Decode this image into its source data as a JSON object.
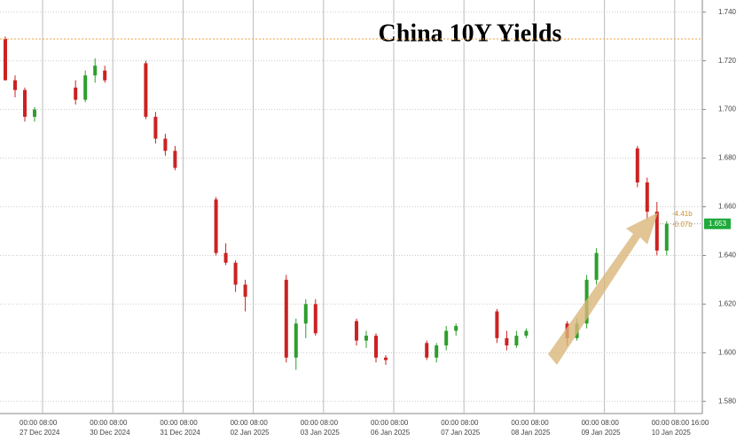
{
  "chart_data": {
    "type": "candlestick",
    "title": "China 10Y Yields",
    "ylim": [
      1.575,
      1.745
    ],
    "yticks": [
      {
        "value": 1.58,
        "label": "1.580"
      },
      {
        "value": 1.6,
        "label": "1.600"
      },
      {
        "value": 1.62,
        "label": "1.620"
      },
      {
        "value": 1.64,
        "label": "1.640"
      },
      {
        "value": 1.66,
        "label": "1.660"
      },
      {
        "value": 1.68,
        "label": "1.680"
      },
      {
        "value": 1.7,
        "label": "1.700"
      },
      {
        "value": 1.72,
        "label": "1.720"
      },
      {
        "value": 1.74,
        "label": "1.740"
      }
    ],
    "up_color": "#2e9e2e",
    "down_color": "#cc2222",
    "grid": true,
    "reference_line": 1.729,
    "last_price": 1.653,
    "annotations": [
      "-4.41b",
      "-0.07b"
    ],
    "days": [
      {
        "times": "00:00 08:00",
        "date": "27 Dec 2024",
        "open": [
          1.729,
          1.712,
          1.708,
          1.697
        ],
        "high": [
          1.73,
          1.714,
          1.709,
          1.701
        ],
        "low": [
          1.712,
          1.705,
          1.695,
          1.695
        ],
        "close": [
          1.712,
          1.708,
          1.697,
          1.7
        ]
      },
      {
        "times": "00:00 08:00",
        "date": "30 Dec 2024",
        "open": [
          1.709,
          1.704,
          1.714,
          1.716
        ],
        "high": [
          1.712,
          1.716,
          1.721,
          1.718
        ],
        "low": [
          1.702,
          1.703,
          1.711,
          1.711
        ],
        "close": [
          1.704,
          1.714,
          1.718,
          1.712
        ]
      },
      {
        "times": "00:00 08:00",
        "date": "31 Dec 2024",
        "open": [
          1.719,
          1.697,
          1.688,
          1.683
        ],
        "high": [
          1.72,
          1.699,
          1.69,
          1.685
        ],
        "low": [
          1.696,
          1.686,
          1.681,
          1.675
        ],
        "close": [
          1.697,
          1.688,
          1.683,
          1.676
        ]
      },
      {
        "times": "00:00 08:00",
        "date": "02 Jan 2025",
        "open": [
          1.663,
          1.641,
          1.637,
          1.628
        ],
        "high": [
          1.664,
          1.645,
          1.638,
          1.63
        ],
        "low": [
          1.64,
          1.636,
          1.625,
          1.617
        ],
        "close": [
          1.641,
          1.637,
          1.628,
          1.623
        ]
      },
      {
        "times": "00:00 08:00",
        "date": "03 Jan 2025",
        "open": [
          1.63,
          1.598,
          1.612,
          1.62
        ],
        "high": [
          1.632,
          1.614,
          1.622,
          1.622
        ],
        "low": [
          1.596,
          1.593,
          1.606,
          1.607
        ],
        "close": [
          1.598,
          1.612,
          1.62,
          1.608
        ]
      },
      {
        "times": "00:00 08:00",
        "date": "06 Jan 2025",
        "open": [
          1.613,
          1.605,
          1.607,
          1.598
        ],
        "high": [
          1.614,
          1.609,
          1.608,
          1.599
        ],
        "low": [
          1.603,
          1.602,
          1.596,
          1.595
        ],
        "close": [
          1.605,
          1.607,
          1.598,
          1.597
        ]
      },
      {
        "times": "00:00 08:00",
        "date": "07 Jan 2025",
        "open": [
          1.604,
          1.598,
          1.603,
          1.609
        ],
        "high": [
          1.605,
          1.604,
          1.611,
          1.612
        ],
        "low": [
          1.597,
          1.596,
          1.601,
          1.607
        ],
        "close": [
          1.598,
          1.603,
          1.609,
          1.611
        ]
      },
      {
        "times": "00:00 08:00",
        "date": "08 Jan 2025",
        "open": [
          1.617,
          1.606,
          1.603,
          1.607
        ],
        "high": [
          1.618,
          1.609,
          1.609,
          1.61
        ],
        "low": [
          1.604,
          1.601,
          1.602,
          1.606
        ],
        "close": [
          1.606,
          1.603,
          1.607,
          1.609
        ]
      },
      {
        "times": "00:00 08:00",
        "date": "09 Jan 2025",
        "open": [
          1.612,
          1.606,
          1.612,
          1.63
        ],
        "high": [
          1.613,
          1.614,
          1.632,
          1.643
        ],
        "low": [
          1.603,
          1.605,
          1.61,
          1.628
        ],
        "close": [
          1.606,
          1.612,
          1.63,
          1.641
        ]
      },
      {
        "times": "00:00 08:00 16:00",
        "date": "10 Jan 2025",
        "open": [
          1.684,
          1.67,
          1.658,
          1.642
        ],
        "high": [
          1.685,
          1.672,
          1.662,
          1.654
        ],
        "low": [
          1.668,
          1.655,
          1.64,
          1.64
        ],
        "close": [
          1.67,
          1.658,
          1.642,
          1.653
        ]
      }
    ]
  }
}
